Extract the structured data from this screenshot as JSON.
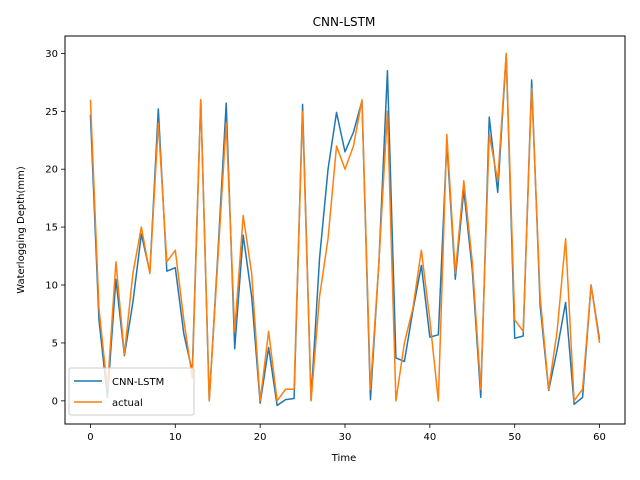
{
  "chart_data": {
    "type": "line",
    "title": "CNN-LSTM",
    "xlabel": "Time",
    "ylabel": "Waterlogging Depth(mm)",
    "xlim": [
      -3,
      63
    ],
    "ylim": [
      -2,
      31.5
    ],
    "xticks": [
      0,
      10,
      20,
      30,
      40,
      50,
      60
    ],
    "yticks": [
      0,
      5,
      10,
      15,
      20,
      25,
      30
    ],
    "legend_position": "lower-left",
    "x": [
      0,
      1,
      2,
      3,
      4,
      5,
      6,
      7,
      8,
      9,
      10,
      11,
      12,
      13,
      14,
      15,
      16,
      17,
      18,
      19,
      20,
      21,
      22,
      23,
      24,
      25,
      26,
      27,
      28,
      29,
      30,
      31,
      32,
      33,
      34,
      35,
      36,
      37,
      38,
      39,
      40,
      41,
      42,
      43,
      44,
      45,
      46,
      47,
      48,
      49,
      50,
      51,
      52,
      53,
      54,
      55,
      56,
      57,
      58,
      59,
      60
    ],
    "series": [
      {
        "name": "CNN-LSTM",
        "color": "#1f77b4",
        "values": [
          24.7,
          7.0,
          0.3,
          10.5,
          3.9,
          8.5,
          14.4,
          11.1,
          25.2,
          11.2,
          11.5,
          5.8,
          2.5,
          26.0,
          0.0,
          12.5,
          25.7,
          4.5,
          14.3,
          9.0,
          -0.2,
          4.6,
          -0.4,
          0.1,
          0.2,
          25.6,
          0.1,
          12.3,
          20.0,
          24.9,
          21.5,
          23.2,
          25.9,
          0.1,
          12.0,
          28.5,
          3.7,
          3.4,
          7.8,
          11.7,
          5.5,
          5.7,
          22.3,
          10.5,
          18.2,
          11.3,
          0.3,
          24.5,
          18.0,
          29.9,
          5.4,
          5.6,
          27.7,
          8.2,
          0.9,
          4.4,
          8.5,
          -0.3,
          0.3,
          10.0,
          5.3
        ]
      },
      {
        "name": "actual",
        "color": "#ff7f0e",
        "values": [
          26.0,
          8.0,
          1.0,
          12.0,
          4.0,
          11.0,
          15.0,
          11.0,
          24.0,
          12.0,
          13.0,
          7.0,
          2.0,
          26.0,
          0.0,
          12.0,
          24.0,
          6.0,
          16.0,
          11.0,
          0.0,
          6.0,
          0.0,
          1.0,
          1.0,
          25.0,
          0.0,
          9.0,
          14.0,
          22.0,
          20.0,
          22.0,
          26.0,
          1.0,
          12.0,
          25.0,
          0.0,
          5.0,
          8.0,
          13.0,
          7.0,
          0.0,
          23.0,
          11.0,
          19.0,
          12.0,
          1.0,
          23.0,
          19.0,
          30.0,
          7.0,
          6.0,
          27.0,
          9.0,
          1.0,
          6.0,
          14.0,
          0.0,
          1.0,
          10.0,
          5.0
        ]
      }
    ],
    "grid": false
  }
}
